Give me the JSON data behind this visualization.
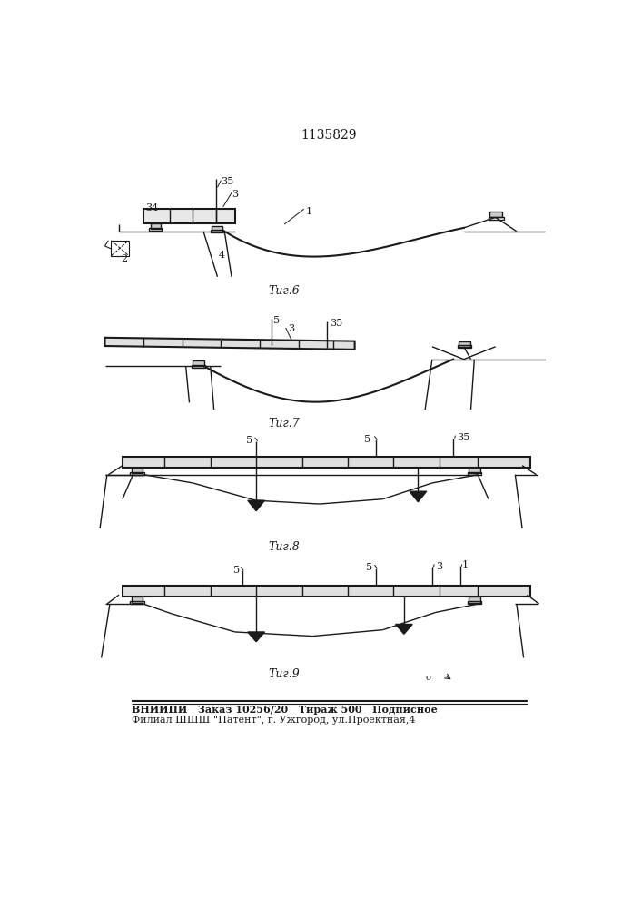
{
  "title": "1135829",
  "title_fontsize": 10,
  "fig6_caption": "Τиг.6",
  "fig7_caption": "Τиг.7",
  "fig8_caption": "Τиг.8",
  "fig9_caption": "Τиг.9",
  "footer_line1": "ВНИИПИ   Заказ 10256/20   Тираж 500   Подписное",
  "footer_line2": "Филиал ШШШ \"Патент\", г. Ужгород, ул.Проектная,4",
  "line_color": "#1a1a1a",
  "bg_color": "#ffffff"
}
